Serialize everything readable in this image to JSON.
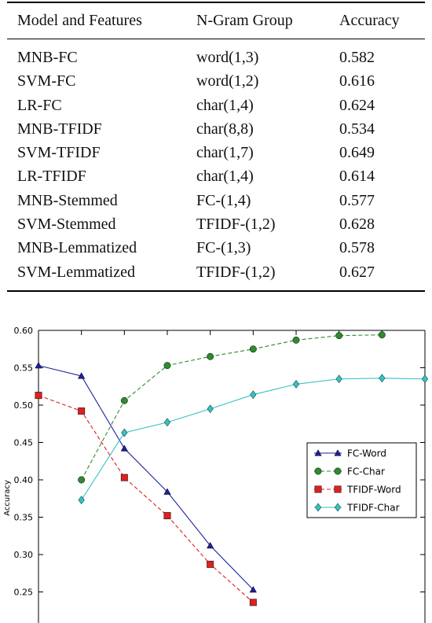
{
  "table": {
    "headers": [
      "Model and Features",
      "N-Gram Group",
      "Accuracy"
    ],
    "rows": [
      [
        "MNB-FC",
        "word(1,3)",
        "0.582"
      ],
      [
        "SVM-FC",
        "word(1,2)",
        "0.616"
      ],
      [
        "LR-FC",
        "char(1,4)",
        "0.624"
      ],
      [
        "MNB-TFIDF",
        "char(8,8)",
        "0.534"
      ],
      [
        "SVM-TFIDF",
        "char(1,7)",
        "0.649"
      ],
      [
        "LR-TFIDF",
        "char(1,4)",
        "0.614"
      ],
      [
        "MNB-Stemmed",
        "FC-(1,4)",
        "0.577"
      ],
      [
        "SVM-Stemmed",
        "TFIDF-(1,2)",
        "0.628"
      ],
      [
        "MNB-Lemmatized",
        "FC-(1,3)",
        "0.578"
      ],
      [
        "SVM-Lemmatized",
        "TFIDF-(1,2)",
        "0.627"
      ]
    ]
  },
  "chart_data": {
    "type": "line",
    "title": "",
    "xlabel": "",
    "ylabel": "Accuracy",
    "ylim": [
      0.2,
      0.6
    ],
    "xlim": [
      0,
      9
    ],
    "yticks": [
      "0.60",
      "0.55",
      "0.50",
      "0.45",
      "0.40",
      "0.35",
      "0.30",
      "0.25"
    ],
    "grid": false,
    "legend_position": "right",
    "series": [
      {
        "name": "FC-Word",
        "color": "#1f1f9e",
        "dash": false,
        "marker": "triangle",
        "x": [
          0,
          1,
          2,
          3,
          4,
          5
        ],
        "y": [
          0.553,
          0.539,
          0.442,
          0.384,
          0.312,
          0.253
        ]
      },
      {
        "name": "FC-Char",
        "color": "#2e8b2e",
        "dash": true,
        "marker": "circle",
        "x": [
          1,
          2,
          3,
          4,
          5,
          6,
          7,
          8
        ],
        "y": [
          0.4,
          0.506,
          0.553,
          0.565,
          0.575,
          0.587,
          0.593,
          0.594
        ]
      },
      {
        "name": "TFIDF-Word",
        "color": "#dd2020",
        "dash": true,
        "marker": "square",
        "x": [
          0,
          1,
          2,
          3,
          4,
          5
        ],
        "y": [
          0.513,
          0.492,
          0.403,
          0.352,
          0.287,
          0.236
        ]
      },
      {
        "name": "TFIDF-Char",
        "color": "#33c2c2",
        "dash": false,
        "marker": "diamond",
        "x": [
          1,
          2,
          3,
          4,
          5,
          6,
          7,
          8,
          9
        ],
        "y": [
          0.373,
          0.463,
          0.477,
          0.495,
          0.514,
          0.528,
          0.535,
          0.536,
          0.535
        ]
      }
    ]
  }
}
